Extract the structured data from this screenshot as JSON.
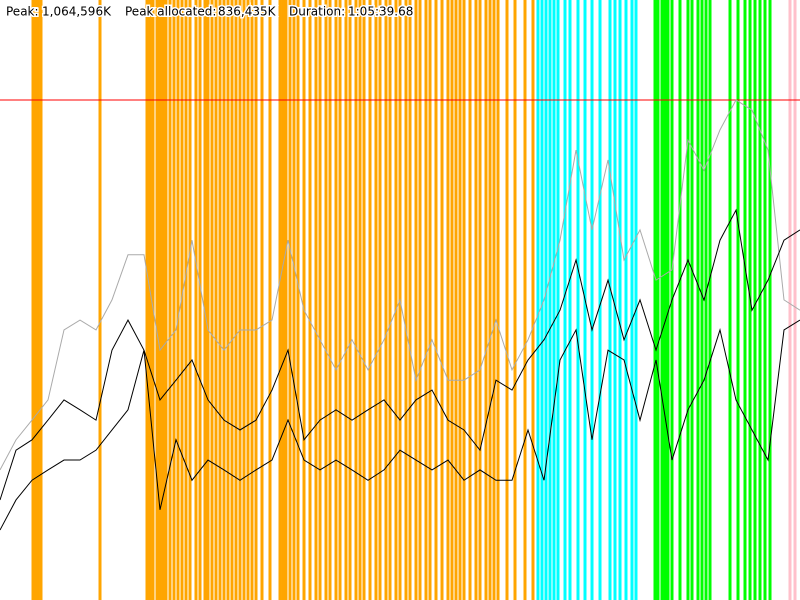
{
  "chart_data": {
    "type": "line",
    "header": {
      "peak_label": "Peak:",
      "peak": {
        "value": 1064596,
        "label": "1,064,596K"
      },
      "peak_allocated_label": "Peak allocated:",
      "peak_allocated": {
        "value": 836435,
        "label": "836,435K"
      },
      "duration_label": "Duration:",
      "duration": "1:05:39.68"
    },
    "peak_line_color": "#ff0000",
    "xlim": [
      0,
      3939.68
    ],
    "ylim": [
      0,
      1277515
    ],
    "x": [
      0,
      78.8,
      157.6,
      236.4,
      315.2,
      394.0,
      472.8,
      551.5,
      630.3,
      709.1,
      787.9,
      866.7,
      945.5,
      1024.3,
      1103.1,
      1181.9,
      1260.7,
      1339.5,
      1418.3,
      1497.1,
      1575.9,
      1654.7,
      1733.5,
      1812.3,
      1891.0,
      1969.8,
      2048.6,
      2127.4,
      2206.2,
      2285.0,
      2363.8,
      2442.6,
      2521.4,
      2600.2,
      2679.0,
      2757.8,
      2836.6,
      2915.4,
      2994.2,
      3073.0,
      3151.8,
      3230.6,
      3309.4,
      3388.1,
      3466.9,
      3545.7,
      3624.5,
      3703.3,
      3782.1,
      3860.9,
      3939.7
    ],
    "series": [
      {
        "color": "#aaaaaa",
        "values": [
          277000,
          341000,
          383000,
          426000,
          575000,
          596000,
          575000,
          639000,
          735000,
          735000,
          532000,
          575000,
          766000,
          575000,
          532000,
          575000,
          575000,
          596000,
          766000,
          617000,
          554000,
          490000,
          554000,
          490000,
          554000,
          639000,
          468000,
          554000,
          468000,
          468000,
          490000,
          596000,
          490000,
          554000,
          639000,
          766000,
          958000,
          788000,
          937000,
          724000,
          788000,
          681000,
          703000,
          979000,
          915000,
          1001000,
          1064596,
          1043000,
          958000,
          639000,
          617000
        ]
      },
      {
        "color": "#000000",
        "values": [
          213000,
          319000,
          341000,
          383000,
          426000,
          405000,
          383000,
          532000,
          596000,
          532000,
          426000,
          468000,
          511000,
          426000,
          383000,
          362000,
          383000,
          447000,
          532000,
          341000,
          383000,
          405000,
          383000,
          405000,
          426000,
          383000,
          426000,
          447000,
          383000,
          362000,
          319000,
          468000,
          447000,
          511000,
          554000,
          617000,
          724000,
          575000,
          681000,
          554000,
          639000,
          532000,
          639000,
          724000,
          639000,
          766000,
          830000,
          617000,
          681000,
          766000,
          788000
        ]
      },
      {
        "color": "#000000",
        "values": [
          149000,
          213000,
          255000,
          277000,
          298000,
          298000,
          319000,
          362000,
          405000,
          532000,
          192000,
          341000,
          255000,
          298000,
          277000,
          255000,
          277000,
          298000,
          383000,
          298000,
          277000,
          298000,
          277000,
          255000,
          277000,
          319000,
          298000,
          277000,
          298000,
          255000,
          277000,
          255000,
          255000,
          362000,
          255000,
          511000,
          575000,
          341000,
          532000,
          511000,
          383000,
          511000,
          298000,
          405000,
          468000,
          575000,
          426000,
          362000,
          298000,
          575000,
          596000
        ]
      }
    ],
    "events": [
      {
        "color": "#ffa500",
        "x": [
          162.5,
          172.4,
          187.1,
          201.9,
          492.5,
          723.9,
          738.7,
          753.5,
          773.2,
          787.9,
          802.7,
          817.5,
          837.2,
          856.9,
          876.6,
          896.3,
          916.0,
          935.7,
          965.2,
          984.9,
          1009.5,
          1024.3,
          1044.0,
          1063.7,
          1083.4,
          1103.1,
          1122.8,
          1142.5,
          1162.2,
          1181.9,
          1201.6,
          1221.3,
          1241.0,
          1260.7,
          1290.2,
          1329.6,
          1378.9,
          1393.7,
          1408.4,
          1428.1,
          1447.8,
          1467.5,
          1497.1,
          1526.6,
          1556.2,
          1575.9,
          1605.4,
          1625.1,
          1654.7,
          1674.4,
          1703.9,
          1723.6,
          1753.2,
          1772.9,
          1792.6,
          1822.1,
          1851.6,
          1871.3,
          1900.9,
          1920.6,
          1950.1,
          1969.8,
          1999.4,
          2019.1,
          2048.6,
          2068.3,
          2097.9,
          2117.6,
          2147.1,
          2176.7,
          2206.2,
          2225.9,
          2245.6,
          2265.3,
          2285.0,
          2314.6,
          2344.1,
          2363.8,
          2393.4,
          2413.1,
          2432.8,
          2452.5,
          2496.8,
          2536.2,
          2585.4,
          2624.8
        ]
      },
      {
        "color": "#00ffff",
        "x": [
          2649.4,
          2669.1,
          2688.8,
          2708.5,
          2728.2,
          2747.9,
          2782.4,
          2807.0,
          2846.4,
          2880.9,
          2915.4,
          2954.8,
          3004.0,
          3028.6,
          3053.3,
          3082.8,
          3112.3,
          3132.0
        ]
      },
      {
        "color": "#00ff00",
        "x": [
          3225.6,
          3240.4,
          3260.1,
          3274.9,
          3289.6,
          3309.3,
          3348.7,
          3388.1,
          3407.8,
          3437.4,
          3457.1,
          3476.8,
          3496.5,
          3595.0,
          3634.4,
          3668.8,
          3693.5,
          3718.1,
          3742.7,
          3767.3,
          3792.0
        ]
      },
      {
        "color": "#ffc0cb",
        "x": [
          3890.4,
          3915.1
        ]
      }
    ]
  }
}
